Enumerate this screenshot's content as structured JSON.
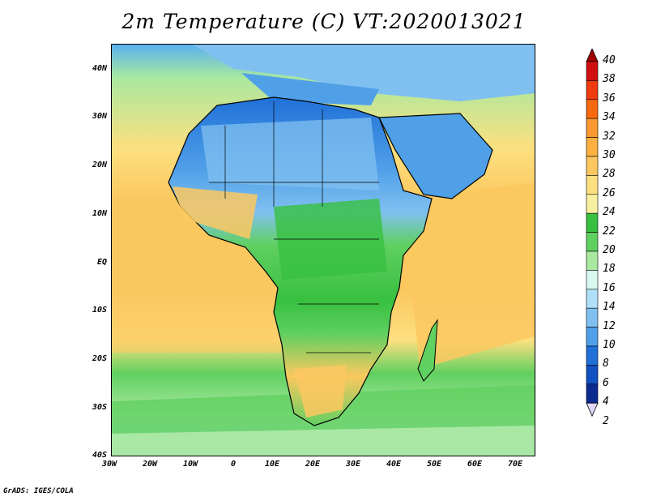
{
  "title": "2m Temperature (C) VT:2020013021",
  "footer": "GrADS: IGES/COLA",
  "lat_labels": [
    "40N",
    "30N",
    "20N",
    "10N",
    "EQ",
    "10S",
    "20S",
    "30S",
    "40S"
  ],
  "lon_labels": [
    "30W",
    "20W",
    "10W",
    "0",
    "10E",
    "20E",
    "30E",
    "40E",
    "50E",
    "60E",
    "70E"
  ],
  "colorbar": {
    "levels": [
      "40",
      "38",
      "36",
      "34",
      "32",
      "30",
      "28",
      "26",
      "24",
      "22",
      "20",
      "18",
      "16",
      "14",
      "12",
      "10",
      "8",
      "6",
      "4",
      "2"
    ],
    "colors": [
      "#a00000",
      "#d01010",
      "#f03a10",
      "#f86a10",
      "#fa9a30",
      "#fbb040",
      "#fbc860",
      "#fce080",
      "#f8f0a0",
      "#38c040",
      "#60d060",
      "#a8e8a0",
      "#d8f8f0",
      "#b0e0f8",
      "#80c0f0",
      "#50a0e8",
      "#2070d8",
      "#1050c0",
      "#0a2a90",
      "#e0d8f8"
    ]
  }
}
